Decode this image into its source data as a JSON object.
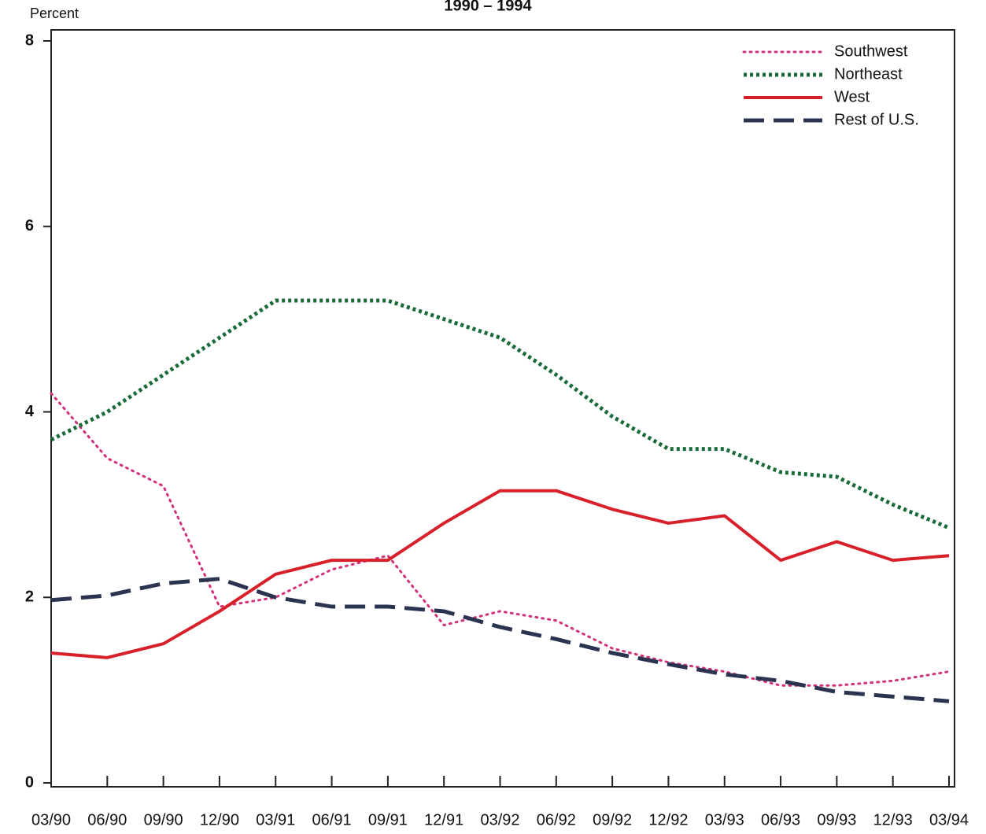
{
  "chart_data": {
    "type": "line",
    "title": "1990 – 1994",
    "y_label": "Percent",
    "categories": [
      "03/90",
      "06/90",
      "09/90",
      "12/90",
      "03/91",
      "06/91",
      "09/91",
      "12/91",
      "03/92",
      "06/92",
      "09/92",
      "12/92",
      "03/93",
      "06/93",
      "09/93",
      "12/93",
      "03/94"
    ],
    "ylim": [
      0,
      8
    ],
    "yticks": [
      0,
      2,
      4,
      6,
      8
    ],
    "grid": false,
    "legend": "top-right",
    "series": [
      {
        "name": "Southwest",
        "color": "#d1307a",
        "style": "dotted",
        "values": [
          4.2,
          3.5,
          3.2,
          1.9,
          2.0,
          2.3,
          2.45,
          1.7,
          1.85,
          1.75,
          1.45,
          1.3,
          1.2,
          1.05,
          1.05,
          1.1,
          1.2
        ]
      },
      {
        "name": "Northeast",
        "color": "#1a6b3a",
        "style": "dotted-heavy",
        "values": [
          3.7,
          4.0,
          4.4,
          4.8,
          5.2,
          5.2,
          5.2,
          5.0,
          4.8,
          4.4,
          3.95,
          3.6,
          3.6,
          3.35,
          3.3,
          3.0,
          2.75
        ]
      },
      {
        "name": "West",
        "color": "#d8202a",
        "style": "solid",
        "values": [
          1.4,
          1.35,
          1.5,
          1.85,
          2.25,
          2.4,
          2.4,
          2.8,
          3.15,
          3.15,
          2.95,
          2.8,
          2.88,
          2.4,
          2.6,
          2.4,
          2.45
        ]
      },
      {
        "name": "Rest of U.S.",
        "color": "#2a3450",
        "style": "dashed",
        "values": [
          1.97,
          2.02,
          2.15,
          2.2,
          2.0,
          1.9,
          1.9,
          1.85,
          1.68,
          1.55,
          1.4,
          1.28,
          1.17,
          1.1,
          0.98,
          0.93,
          0.88
        ]
      }
    ]
  }
}
